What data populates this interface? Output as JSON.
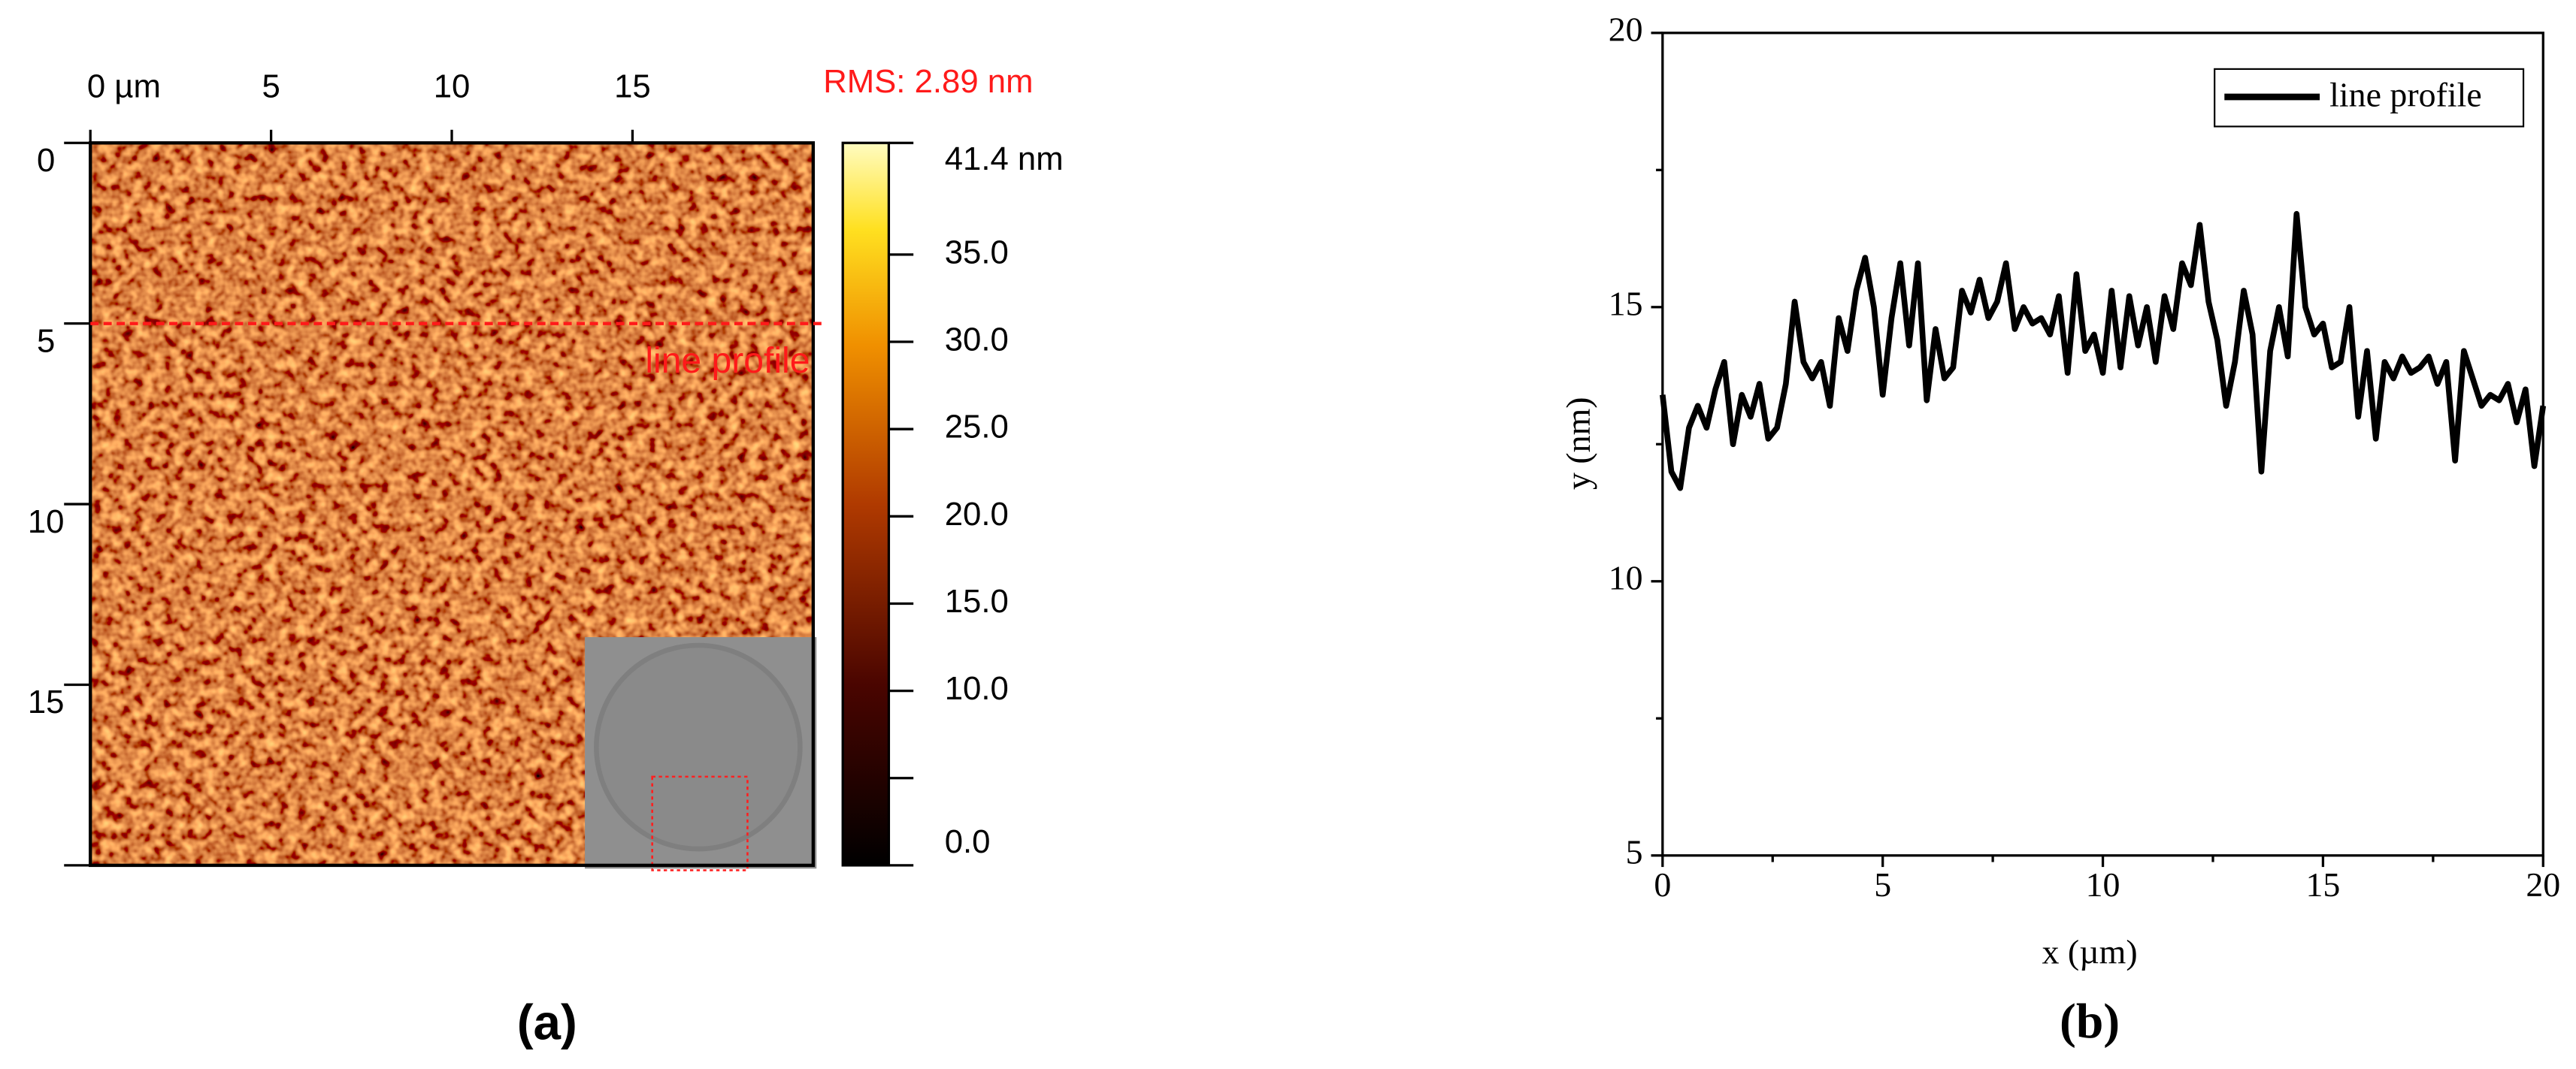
{
  "chart_data": [
    {
      "type": "heatmap",
      "panel_label": "(a)",
      "xlim": [
        0,
        20
      ],
      "xticks": [
        {
          "value": 0,
          "label": "0 µm"
        },
        5,
        10,
        15
      ],
      "ylim": [
        0,
        20
      ],
      "yticks": [
        0,
        5,
        10,
        15
      ],
      "yminor_ticks": [
        20
      ],
      "clim": [
        0,
        41.4
      ],
      "cticks": [
        {
          "value": 41.4,
          "label": "41.4 nm"
        },
        {
          "value": 35,
          "label": "35.0"
        },
        {
          "value": 30,
          "label": "30.0"
        },
        {
          "value": 25,
          "label": "25.0"
        },
        {
          "value": 20,
          "label": "20.0"
        },
        {
          "value": 15,
          "label": "15.0"
        },
        {
          "value": 10,
          "label": "10.0"
        },
        {
          "value": 0,
          "label": "0.0"
        }
      ],
      "cminor_ticks": [
        5
      ],
      "annotation": "RMS: 2.89 nm",
      "profile_y": 5,
      "profile_label": "line profile",
      "profile_color": "#ff1a1a"
    },
    {
      "type": "line",
      "panel_label": "(b)",
      "xlabel": "x (µm)",
      "ylabel": "y (nm)",
      "xlim": [
        0,
        20
      ],
      "xticks": [
        0,
        5,
        10,
        15,
        20
      ],
      "xminor_ticks": [
        2.5,
        7.5,
        12.5,
        17.5
      ],
      "ylim": [
        5,
        20
      ],
      "yticks": [
        5,
        10,
        15,
        20
      ],
      "yminor_ticks": [
        7.5,
        12.5,
        17.5
      ],
      "legend": "top-right",
      "x": [
        0,
        0.2,
        0.4,
        0.6,
        0.8,
        1,
        1.2,
        1.4,
        1.6,
        1.8,
        2,
        2.2,
        2.4,
        2.6,
        2.8,
        3,
        3.2,
        3.4,
        3.6,
        3.8,
        4,
        4.2,
        4.4,
        4.6,
        4.8,
        5,
        5.2,
        5.4,
        5.6,
        5.8,
        6,
        6.2,
        6.4,
        6.6,
        6.8,
        7,
        7.2,
        7.4,
        7.6,
        7.8,
        8,
        8.2,
        8.4,
        8.6,
        8.8,
        9,
        9.2,
        9.4,
        9.6,
        9.8,
        10,
        10.2,
        10.4,
        10.6,
        10.8,
        11,
        11.2,
        11.4,
        11.6,
        11.8,
        12,
        12.2,
        12.4,
        12.6,
        12.8,
        13,
        13.2,
        13.4,
        13.6,
        13.8,
        14,
        14.2,
        14.4,
        14.6,
        14.8,
        15,
        15.2,
        15.4,
        15.6,
        15.8,
        16,
        16.2,
        16.4,
        16.6,
        16.8,
        17,
        17.2,
        17.4,
        17.6,
        17.8,
        18,
        18.2,
        18.4,
        18.6,
        18.8,
        19,
        19.2,
        19.4,
        19.6,
        19.8,
        20
      ],
      "series": [
        {
          "name": "line profile",
          "color": "#000000",
          "values": [
            13.4,
            12.0,
            11.7,
            12.8,
            13.2,
            12.8,
            13.5,
            14.0,
            12.5,
            13.4,
            13.0,
            13.6,
            12.6,
            12.8,
            13.6,
            15.1,
            14.0,
            13.7,
            14.0,
            13.2,
            14.8,
            14.2,
            15.3,
            15.9,
            15.0,
            13.4,
            14.8,
            15.8,
            14.3,
            15.8,
            13.3,
            14.6,
            13.7,
            13.9,
            15.3,
            14.9,
            15.5,
            14.8,
            15.1,
            15.8,
            14.6,
            15.0,
            14.7,
            14.8,
            14.5,
            15.2,
            13.8,
            15.6,
            14.2,
            14.5,
            13.8,
            15.3,
            13.9,
            15.2,
            14.3,
            15.0,
            14.0,
            15.2,
            14.6,
            15.8,
            15.4,
            16.5,
            15.1,
            14.4,
            13.2,
            14.0,
            15.3,
            14.5,
            12.0,
            14.2,
            15.0,
            14.1,
            16.7,
            15.0,
            14.5,
            14.7,
            13.9,
            14.0,
            15.0,
            13.0,
            14.2,
            12.6,
            14.0,
            13.7,
            14.1,
            13.8,
            13.9,
            14.1,
            13.6,
            14.0,
            12.2,
            14.2,
            13.7,
            13.2,
            13.4,
            13.3,
            13.6,
            12.9,
            13.5,
            12.1,
            13.2
          ]
        }
      ]
    }
  ]
}
